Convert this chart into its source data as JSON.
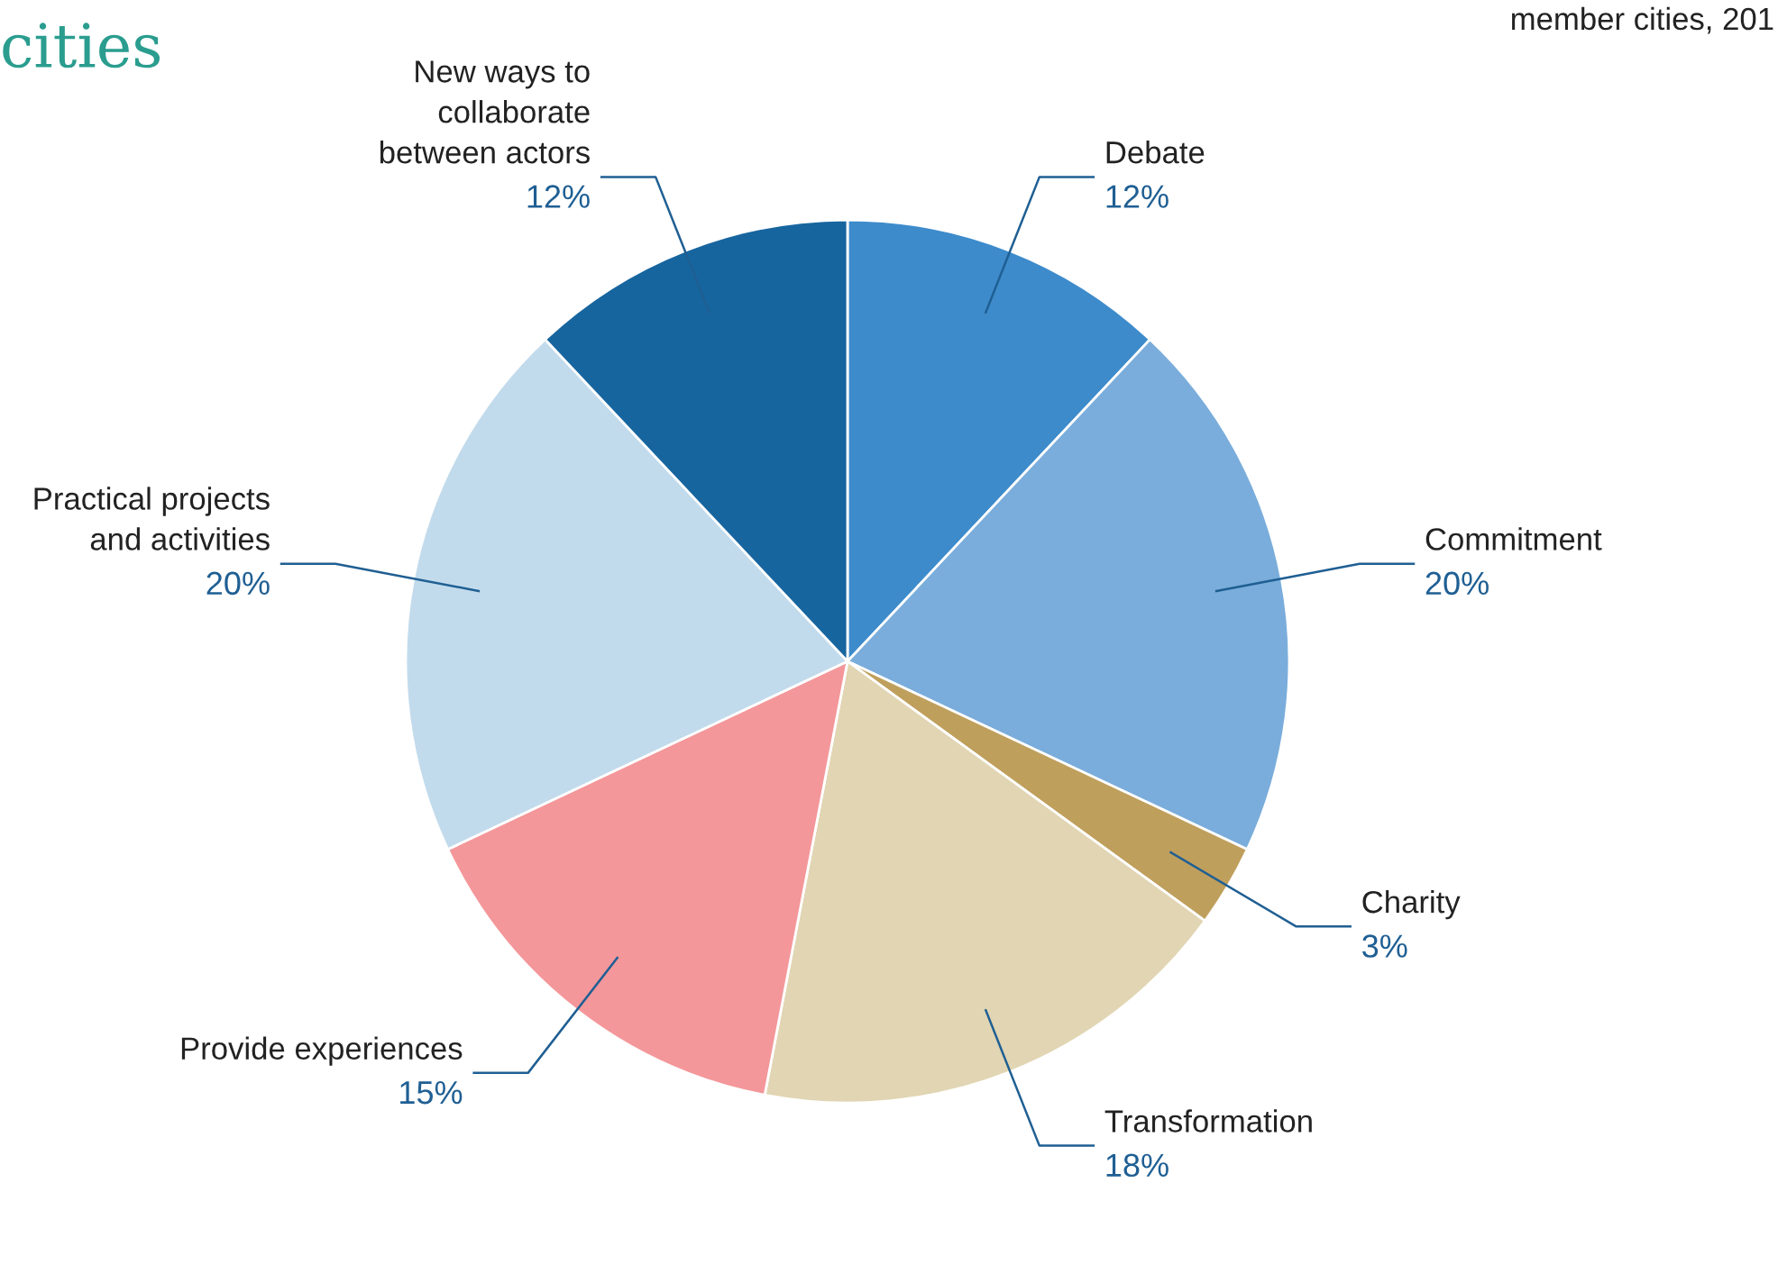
{
  "chart_data": {
    "type": "pie",
    "title": "cities",
    "subtitle": "member cities, 201",
    "categories": [
      "Debate",
      "Commitment",
      "Charity",
      "Transformation",
      "Provide experiences",
      "Practical projects\nand activities",
      "New ways to\ncollaborate\nbetween actors"
    ],
    "values": [
      12,
      20,
      3,
      18,
      15,
      20,
      12
    ],
    "colors": [
      "#3d8bcb",
      "#7aaddb",
      "#bf9f5c",
      "#e1d5b3",
      "#f4979a",
      "#c2dbec",
      "#17659f"
    ],
    "value_labels": [
      "12%",
      "20%",
      "3%",
      "18%",
      "15%",
      "20%",
      "12%"
    ]
  }
}
